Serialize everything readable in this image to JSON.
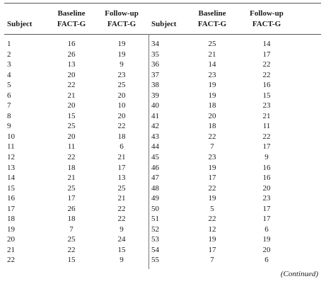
{
  "table": {
    "headers": {
      "left": {
        "subject": "Subject",
        "baseline_l1": "Baseline",
        "baseline_l2": "FACT-G",
        "followup_l1": "Follow-up",
        "followup_l2": "FACT-G"
      },
      "right": {
        "subject": "Subject",
        "baseline_l1": "Baseline",
        "baseline_l2": "FACT-G",
        "followup_l1": "Follow-up",
        "followup_l2": "FACT-G"
      }
    },
    "rows": [
      {
        "s1": "1",
        "b1": "16",
        "f1": "19",
        "s2": "34",
        "b2": "25",
        "f2": "14"
      },
      {
        "s1": "2",
        "b1": "26",
        "f1": "19",
        "s2": "35",
        "b2": "21",
        "f2": "17"
      },
      {
        "s1": "3",
        "b1": "13",
        "f1": "9",
        "s2": "36",
        "b2": "14",
        "f2": "22"
      },
      {
        "s1": "4",
        "b1": "20",
        "f1": "23",
        "s2": "37",
        "b2": "23",
        "f2": "22"
      },
      {
        "s1": "5",
        "b1": "22",
        "f1": "25",
        "s2": "38",
        "b2": "19",
        "f2": "16"
      },
      {
        "s1": "6",
        "b1": "21",
        "f1": "20",
        "s2": "39",
        "b2": "19",
        "f2": "15"
      },
      {
        "s1": "7",
        "b1": "20",
        "f1": "10",
        "s2": "40",
        "b2": "18",
        "f2": "23"
      },
      {
        "s1": "8",
        "b1": "15",
        "f1": "20",
        "s2": "41",
        "b2": "20",
        "f2": "21"
      },
      {
        "s1": "9",
        "b1": "25",
        "f1": "22",
        "s2": "42",
        "b2": "18",
        "f2": "11"
      },
      {
        "s1": "10",
        "b1": "20",
        "f1": "18",
        "s2": "43",
        "b2": "22",
        "f2": "22"
      },
      {
        "s1": "11",
        "b1": "11",
        "f1": "6",
        "s2": "44",
        "b2": "7",
        "f2": "17"
      },
      {
        "s1": "12",
        "b1": "22",
        "f1": "21",
        "s2": "45",
        "b2": "23",
        "f2": "9"
      },
      {
        "s1": "13",
        "b1": "18",
        "f1": "17",
        "s2": "46",
        "b2": "19",
        "f2": "16"
      },
      {
        "s1": "14",
        "b1": "21",
        "f1": "13",
        "s2": "47",
        "b2": "17",
        "f2": "16"
      },
      {
        "s1": "15",
        "b1": "25",
        "f1": "25",
        "s2": "48",
        "b2": "22",
        "f2": "20"
      },
      {
        "s1": "16",
        "b1": "17",
        "f1": "21",
        "s2": "49",
        "b2": "19",
        "f2": "23"
      },
      {
        "s1": "17",
        "b1": "26",
        "f1": "22",
        "s2": "50",
        "b2": "5",
        "f2": "17"
      },
      {
        "s1": "18",
        "b1": "18",
        "f1": "22",
        "s2": "51",
        "b2": "22",
        "f2": "17"
      },
      {
        "s1": "19",
        "b1": "7",
        "f1": "9",
        "s2": "52",
        "b2": "12",
        "f2": "6"
      },
      {
        "s1": "20",
        "b1": "25",
        "f1": "24",
        "s2": "53",
        "b2": "19",
        "f2": "19"
      },
      {
        "s1": "21",
        "b1": "22",
        "f1": "15",
        "s2": "54",
        "b2": "17",
        "f2": "20"
      },
      {
        "s1": "22",
        "b1": "15",
        "f1": "9",
        "s2": "55",
        "b2": "7",
        "f2": "6"
      }
    ],
    "continued": "(Continued)"
  }
}
